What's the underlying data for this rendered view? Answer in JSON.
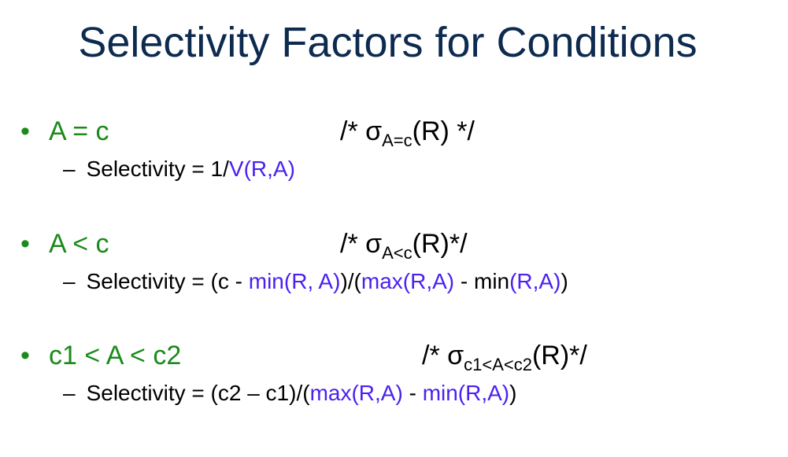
{
  "slide": {
    "title": "Selectivity Factors for Conditions",
    "colors": {
      "title": "#0d2a4f",
      "condition": "#1a8a1a",
      "highlight": "#4b20f0",
      "text": "#000000"
    }
  },
  "items": [
    {
      "bullet": "•",
      "condition": "A = c",
      "comment_open": "/* σ",
      "comment_sub": "A=c",
      "comment_close": "(R) */",
      "dash": "–",
      "sel_1": "Selectivity  = 1/",
      "sel_2": "V(R,A)"
    },
    {
      "bullet": "•",
      "condition": "A < c",
      "comment_open": "/* σ",
      "comment_sub": "A<c",
      "comment_close": "(R)*/",
      "dash": "–",
      "sel_1": "Selectivity = (c - ",
      "sel_2": "min(R, A)",
      "sel_3": ")/(",
      "sel_4": "max(R,A)",
      "sel_5": " - min",
      "sel_6": "(R,A)",
      "sel_7": ")"
    },
    {
      "bullet": "•",
      "condition": "c1 < A < c2",
      "comment_open": "/* σ",
      "comment_sub": "c1<A<c2",
      "comment_close": "(R)*/",
      "dash": "–",
      "sel_1": "Selectivity = (c2 – c1)/(",
      "sel_2": "max(R,A)",
      "sel_3": " - ",
      "sel_4": "min(R,A)",
      "sel_5": ")"
    }
  ]
}
